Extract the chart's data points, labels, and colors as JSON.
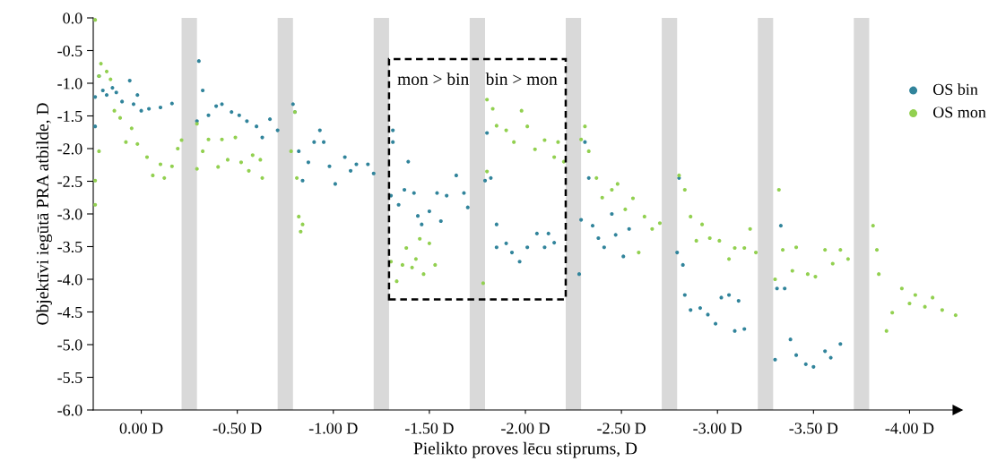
{
  "chart_data": {
    "type": "scatter",
    "xlabel": "Pielikto proves lēcu stiprums, D",
    "ylabel": "Objektīvi iegūtā PRA atbilde, D",
    "xlim": [
      0.25,
      -4.25
    ],
    "ylim": [
      -6,
      0
    ],
    "xticks": [
      {
        "value": 0,
        "label": "0.00 D"
      },
      {
        "value": -0.5,
        "label": "-0.50 D"
      },
      {
        "value": -1,
        "label": "-1.00 D"
      },
      {
        "value": -1.5,
        "label": "-1.50 D"
      },
      {
        "value": -2,
        "label": "-2.00 D"
      },
      {
        "value": -2.5,
        "label": "-2.50 D"
      },
      {
        "value": -3,
        "label": "-3.00 D"
      },
      {
        "value": -3.5,
        "label": "-3.50 D"
      },
      {
        "value": -4,
        "label": "-4.00 D"
      }
    ],
    "yticks": [
      {
        "value": 0,
        "label": "0.0"
      },
      {
        "value": -0.5,
        "label": "-0.5"
      },
      {
        "value": -1,
        "label": "-1.0"
      },
      {
        "value": -1.5,
        "label": "-1.5"
      },
      {
        "value": -2,
        "label": "-2.0"
      },
      {
        "value": -2.5,
        "label": "-2.5"
      },
      {
        "value": -3,
        "label": "-3.0"
      },
      {
        "value": -3.5,
        "label": "-3.5"
      },
      {
        "value": -4,
        "label": "-4.0"
      },
      {
        "value": -4.5,
        "label": "-4.5"
      },
      {
        "value": -5,
        "label": "-5.0"
      },
      {
        "value": -5.5,
        "label": "-5.5"
      },
      {
        "value": -6,
        "label": "-6.0"
      }
    ],
    "grid": false,
    "legend": "top right",
    "marker": "circle",
    "annotations": [
      "mon > bin",
      "bin > mon"
    ],
    "bands": [
      {
        "axis": "x",
        "from": -0.21,
        "to": -0.29,
        "color": "#d9d9d9"
      },
      {
        "axis": "x",
        "from": -0.71,
        "to": -0.79,
        "color": "#d9d9d9"
      },
      {
        "axis": "x",
        "from": -1.21,
        "to": -1.29,
        "color": "#d9d9d9"
      },
      {
        "axis": "x",
        "from": -1.71,
        "to": -1.79,
        "color": "#d9d9d9"
      },
      {
        "axis": "x",
        "from": -2.21,
        "to": -2.29,
        "color": "#d9d9d9"
      },
      {
        "axis": "x",
        "from": -2.71,
        "to": -2.79,
        "color": "#d9d9d9"
      },
      {
        "axis": "x",
        "from": -3.21,
        "to": -3.29,
        "color": "#d9d9d9"
      },
      {
        "axis": "x",
        "from": -3.71,
        "to": -3.79,
        "color": "#d9d9d9"
      }
    ],
    "series": [
      {
        "name": "OS bin",
        "color": "#31849b",
        "x": [
          0.24,
          0.24,
          0.22,
          0.2,
          0.18,
          0.15,
          0.13,
          0.1,
          0.06,
          0.04,
          0.02,
          0.0,
          -0.04,
          -0.1,
          -0.16,
          -0.29,
          -0.3,
          -0.32,
          -0.35,
          -0.39,
          -0.42,
          -0.47,
          -0.51,
          -0.55,
          -0.6,
          -0.63,
          -0.67,
          -0.71,
          -0.79,
          -0.8,
          -0.82,
          -0.84,
          -0.87,
          -0.9,
          -0.93,
          -0.95,
          -0.98,
          -1.01,
          -1.06,
          -1.09,
          -1.12,
          -1.18,
          -1.21,
          -1.3,
          -1.31,
          -1.31,
          -1.34,
          -1.37,
          -1.39,
          -1.42,
          -1.44,
          -1.46,
          -1.5,
          -1.54,
          -1.56,
          -1.59,
          -1.64,
          -1.68,
          -1.7,
          -1.79,
          -1.8,
          -1.82,
          -1.85,
          -1.85,
          -1.9,
          -1.93,
          -1.97,
          -2.01,
          -2.06,
          -2.1,
          -2.12,
          -2.15,
          -2.28,
          -2.29,
          -2.31,
          -2.33,
          -2.35,
          -2.38,
          -2.41,
          -2.45,
          -2.47,
          -2.51,
          -2.54,
          -2.79,
          -2.8,
          -2.82,
          -2.83,
          -2.86,
          -2.91,
          -2.95,
          -2.99,
          -3.02,
          -3.06,
          -3.09,
          -3.11,
          -3.14,
          -3.3,
          -3.31,
          -3.33,
          -3.35,
          -3.38,
          -3.41,
          -3.46,
          -3.5,
          -3.56,
          -3.59,
          -3.64
        ],
        "values": [
          -1.66,
          -1.21,
          -0.89,
          -1.11,
          -1.18,
          -1.07,
          -1.14,
          -1.28,
          -0.96,
          -1.32,
          -1.18,
          -1.42,
          -1.39,
          -1.37,
          -1.31,
          -1.58,
          -0.66,
          -1.11,
          -1.49,
          -1.35,
          -1.32,
          -1.44,
          -1.49,
          -1.58,
          -1.66,
          -1.83,
          -1.55,
          -1.72,
          -1.32,
          -1.44,
          -2.04,
          -2.49,
          -2.21,
          -1.9,
          -1.72,
          -1.9,
          -2.27,
          -2.54,
          -2.13,
          -2.34,
          -2.24,
          -2.24,
          -2.38,
          -2.72,
          -1.72,
          -1.9,
          -2.86,
          -2.63,
          -2.2,
          -2.68,
          -3.03,
          -3.16,
          -2.96,
          -2.68,
          -3.11,
          -2.72,
          -2.41,
          -2.68,
          -2.9,
          -2.49,
          -1.76,
          -2.45,
          -3.16,
          -3.51,
          -3.45,
          -3.59,
          -3.73,
          -3.51,
          -3.3,
          -3.51,
          -3.3,
          -3.44,
          -3.92,
          -3.09,
          -1.9,
          -2.45,
          -3.18,
          -3.37,
          -3.51,
          -3.0,
          -3.32,
          -3.65,
          -3.23,
          -3.59,
          -2.45,
          -3.78,
          -4.24,
          -4.47,
          -4.44,
          -4.54,
          -4.68,
          -4.28,
          -4.24,
          -4.79,
          -4.33,
          -4.76,
          -5.23,
          -4.14,
          -3.18,
          -4.14,
          -4.92,
          -5.16,
          -5.3,
          -5.34,
          -5.1,
          -5.2,
          -4.99
        ]
      },
      {
        "name": "OS mon",
        "color": "#92d050",
        "x": [
          0.24,
          0.24,
          0.24,
          0.22,
          0.22,
          0.21,
          0.18,
          0.16,
          0.14,
          0.11,
          0.08,
          0.05,
          0.02,
          -0.03,
          -0.06,
          -0.1,
          -0.12,
          -0.16,
          -0.19,
          -0.21,
          -0.29,
          -0.29,
          -0.32,
          -0.35,
          -0.4,
          -0.42,
          -0.45,
          -0.49,
          -0.52,
          -0.56,
          -0.58,
          -0.62,
          -0.63,
          -0.78,
          -0.8,
          -0.81,
          -0.82,
          -0.83,
          -0.84,
          -1.3,
          -1.33,
          -1.36,
          -1.38,
          -1.41,
          -1.43,
          -1.45,
          -1.47,
          -1.5,
          -1.53,
          -1.78,
          -1.8,
          -1.8,
          -1.83,
          -1.85,
          -1.9,
          -1.94,
          -1.98,
          -2.01,
          -2.05,
          -2.1,
          -2.15,
          -2.17,
          -2.2,
          -2.29,
          -2.31,
          -2.33,
          -2.37,
          -2.4,
          -2.45,
          -2.48,
          -2.52,
          -2.56,
          -2.59,
          -2.62,
          -2.66,
          -2.7,
          -2.8,
          -2.83,
          -2.86,
          -2.89,
          -2.92,
          -2.96,
          -3.01,
          -3.06,
          -3.09,
          -3.14,
          -3.17,
          -3.2,
          -3.3,
          -3.32,
          -3.34,
          -3.39,
          -3.41,
          -3.47,
          -3.51,
          -3.56,
          -3.6,
          -3.64,
          -3.68,
          -3.81,
          -3.83,
          -3.84,
          -3.88,
          -3.91,
          -3.96,
          -4.0,
          -4.03,
          -4.08,
          -4.12,
          -4.17,
          -4.24
        ],
        "values": [
          -0.03,
          -2.86,
          -2.49,
          -2.04,
          -0.89,
          -0.7,
          -0.82,
          -0.94,
          -1.42,
          -1.53,
          -1.9,
          -1.69,
          -1.93,
          -2.13,
          -2.41,
          -2.24,
          -2.45,
          -2.27,
          -2.0,
          -1.87,
          -2.31,
          -1.62,
          -2.04,
          -1.86,
          -2.28,
          -1.86,
          -2.17,
          -1.83,
          -2.21,
          -2.34,
          -2.1,
          -2.17,
          -2.45,
          -2.04,
          -1.44,
          -2.45,
          -3.04,
          -3.27,
          -3.16,
          -3.73,
          -4.03,
          -3.78,
          -3.52,
          -3.82,
          -3.69,
          -3.38,
          -3.92,
          -3.45,
          -3.78,
          -4.06,
          -2.35,
          -1.25,
          -1.39,
          -1.65,
          -1.72,
          -1.9,
          -1.42,
          -1.66,
          -2.01,
          -1.87,
          -2.13,
          -1.9,
          -2.2,
          -1.86,
          -1.66,
          -2.04,
          -2.45,
          -2.75,
          -2.63,
          -2.54,
          -2.93,
          -2.76,
          -3.59,
          -3.04,
          -3.23,
          -3.14,
          -2.41,
          -2.63,
          -3.04,
          -3.41,
          -3.16,
          -3.37,
          -3.41,
          -3.69,
          -3.52,
          -3.52,
          -3.23,
          -3.59,
          -4.0,
          -2.63,
          -3.55,
          -3.87,
          -3.51,
          -3.92,
          -3.96,
          -3.55,
          -3.76,
          -3.55,
          -3.69,
          -3.18,
          -3.55,
          -3.92,
          -4.79,
          -4.51,
          -4.14,
          -4.37,
          -4.24,
          -4.42,
          -4.28,
          -4.47,
          -4.55
        ]
      }
    ]
  }
}
